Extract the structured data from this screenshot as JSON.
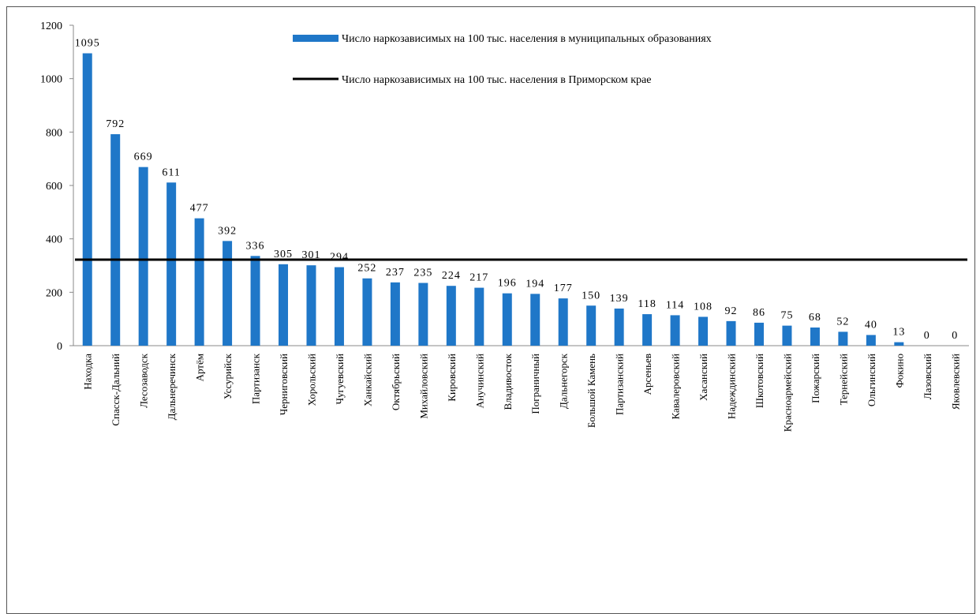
{
  "chart_data": {
    "type": "bar",
    "title": "",
    "xlabel": "",
    "ylabel": "",
    "ylim": [
      0,
      1200
    ],
    "yticks": [
      0,
      200,
      400,
      600,
      800,
      1000,
      1200
    ],
    "grid": false,
    "legend_placement": "top-right",
    "categories": [
      "Находка",
      "Спасск-Дальний",
      "Лесозаводск",
      "Дальнеречинск",
      "Артём",
      "Уссурийск",
      "Партизанск",
      "Черниговский",
      "Хорольский",
      "Чугуевский",
      "Ханкайский",
      "Октябрьский",
      "Михайловский",
      "Кировский",
      "Анучинский",
      "Владивосток",
      "Пограничный",
      "Дальнегорск",
      "Большой Камень",
      "Партизанский",
      "Арсеньев",
      "Кавалеровский",
      "Хасанский",
      "Надеждинский",
      "Шкотовский",
      "Красноармейский",
      "Пожарский",
      "Тернейский",
      "Ольгинский",
      "Фокино",
      "Лазовский",
      "Яковлевский"
    ],
    "series": [
      {
        "name": "Число наркозависимых на 100 тыс. населения в муниципальных образованиях",
        "kind": "bar",
        "color": "#1f77c8",
        "values": [
          1095,
          792,
          669,
          611,
          477,
          392,
          336,
          305,
          301,
          294,
          252,
          237,
          235,
          224,
          217,
          196,
          194,
          177,
          150,
          139,
          118,
          114,
          108,
          92,
          86,
          75,
          68,
          52,
          40,
          13,
          0,
          0
        ]
      },
      {
        "name": "Число наркозависимых на 100 тыс. населения в Приморском крае",
        "kind": "line",
        "color": "#000000",
        "value": 322
      }
    ]
  }
}
